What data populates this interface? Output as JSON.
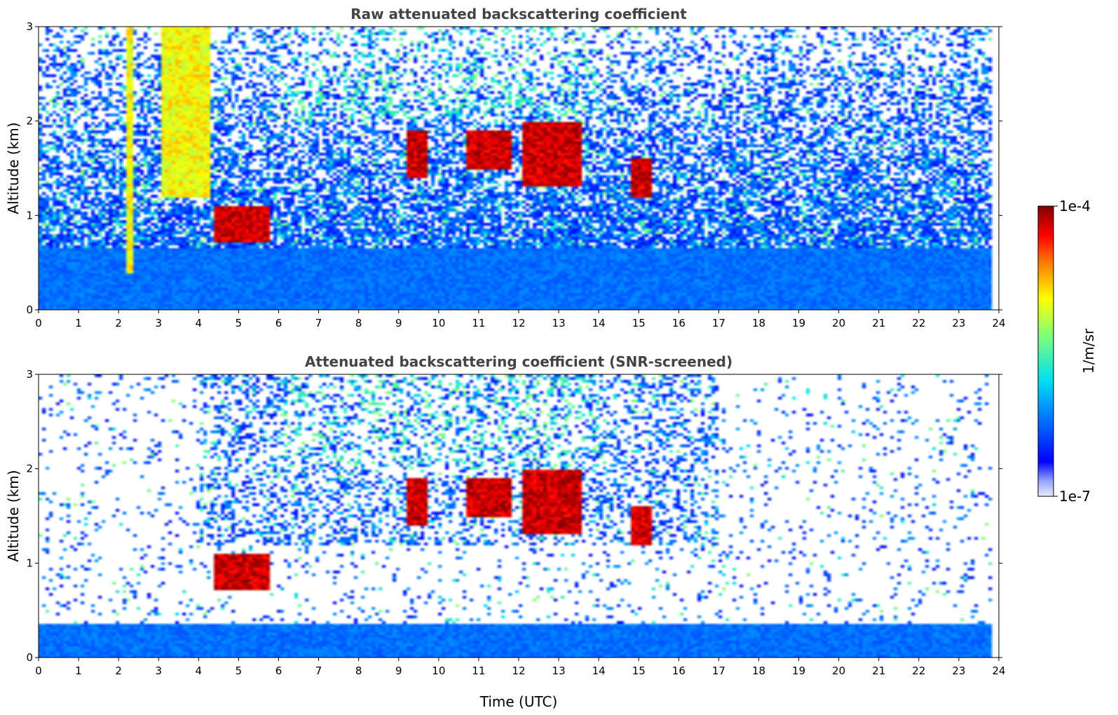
{
  "chart_data": [
    {
      "type": "heatmap",
      "title": "Raw attenuated backscattering coefficient",
      "xlabel": "",
      "ylabel": "Altitude (km)",
      "xlim": [
        0,
        24
      ],
      "ylim": [
        0,
        3
      ],
      "xticks": [
        0,
        1,
        2,
        3,
        4,
        5,
        6,
        7,
        8,
        9,
        10,
        11,
        12,
        13,
        14,
        15,
        16,
        17,
        18,
        19,
        20,
        21,
        22,
        23,
        24
      ],
      "yticks": [
        0,
        1,
        2,
        3
      ],
      "data_end_hour": 23.8,
      "colorscale": "jet",
      "features": [
        {
          "kind": "boundary_layer",
          "base_km": 0,
          "top_km": 0.65
        },
        {
          "kind": "cloud_layer",
          "time_h": [
            4.4,
            5.8
          ],
          "altitude_km": [
            0.7,
            1.1
          ],
          "intensity": "high"
        },
        {
          "kind": "cloud_layer",
          "time_h": [
            9.2,
            9.7
          ],
          "altitude_km": [
            1.4,
            1.9
          ],
          "intensity": "high"
        },
        {
          "kind": "cloud_layer",
          "time_h": [
            10.7,
            11.8
          ],
          "altitude_km": [
            1.5,
            1.9
          ],
          "intensity": "high"
        },
        {
          "kind": "cloud_layer",
          "time_h": [
            12.1,
            13.6
          ],
          "altitude_km": [
            1.3,
            2.0
          ],
          "intensity": "high"
        },
        {
          "kind": "cloud_layer",
          "time_h": [
            14.8,
            15.3
          ],
          "altitude_km": [
            1.2,
            1.6
          ],
          "intensity": "high"
        },
        {
          "kind": "precipitation_streak",
          "time_h": [
            2.2,
            2.4
          ],
          "altitude_km": [
            0.4,
            3.0
          ]
        },
        {
          "kind": "descending_layer",
          "time_h": [
            3.1,
            4.3
          ],
          "altitude_km": [
            1.2,
            3.0
          ]
        }
      ]
    },
    {
      "type": "heatmap",
      "title": "Attenuated backscattering coefficient (SNR-screened)",
      "xlabel": "Time (UTC)",
      "ylabel": "Altitude (km)",
      "xlim": [
        0,
        24
      ],
      "ylim": [
        0,
        3
      ],
      "xticks": [
        0,
        1,
        2,
        3,
        4,
        5,
        6,
        7,
        8,
        9,
        10,
        11,
        12,
        13,
        14,
        15,
        16,
        17,
        18,
        19,
        20,
        21,
        22,
        23,
        24
      ],
      "yticks": [
        0,
        1,
        2,
        3
      ],
      "data_end_hour": 23.8,
      "colorscale": "jet",
      "features": [
        {
          "kind": "boundary_layer",
          "base_km": 0,
          "top_km": 0.35
        },
        {
          "kind": "cloud_layer",
          "time_h": [
            4.4,
            5.8
          ],
          "altitude_km": [
            0.7,
            1.1
          ],
          "intensity": "high"
        },
        {
          "kind": "cloud_layer",
          "time_h": [
            9.2,
            9.7
          ],
          "altitude_km": [
            1.4,
            1.9
          ],
          "intensity": "high"
        },
        {
          "kind": "cloud_layer",
          "time_h": [
            10.7,
            11.8
          ],
          "altitude_km": [
            1.5,
            1.9
          ],
          "intensity": "high"
        },
        {
          "kind": "cloud_layer",
          "time_h": [
            12.1,
            13.6
          ],
          "altitude_km": [
            1.3,
            2.0
          ],
          "intensity": "high"
        },
        {
          "kind": "cloud_layer",
          "time_h": [
            14.8,
            15.3
          ],
          "altitude_km": [
            1.2,
            1.6
          ],
          "intensity": "high"
        }
      ]
    }
  ],
  "colorbar": {
    "label": "1/m/sr",
    "max_label": "1e-4",
    "min_label": "1e-7"
  }
}
